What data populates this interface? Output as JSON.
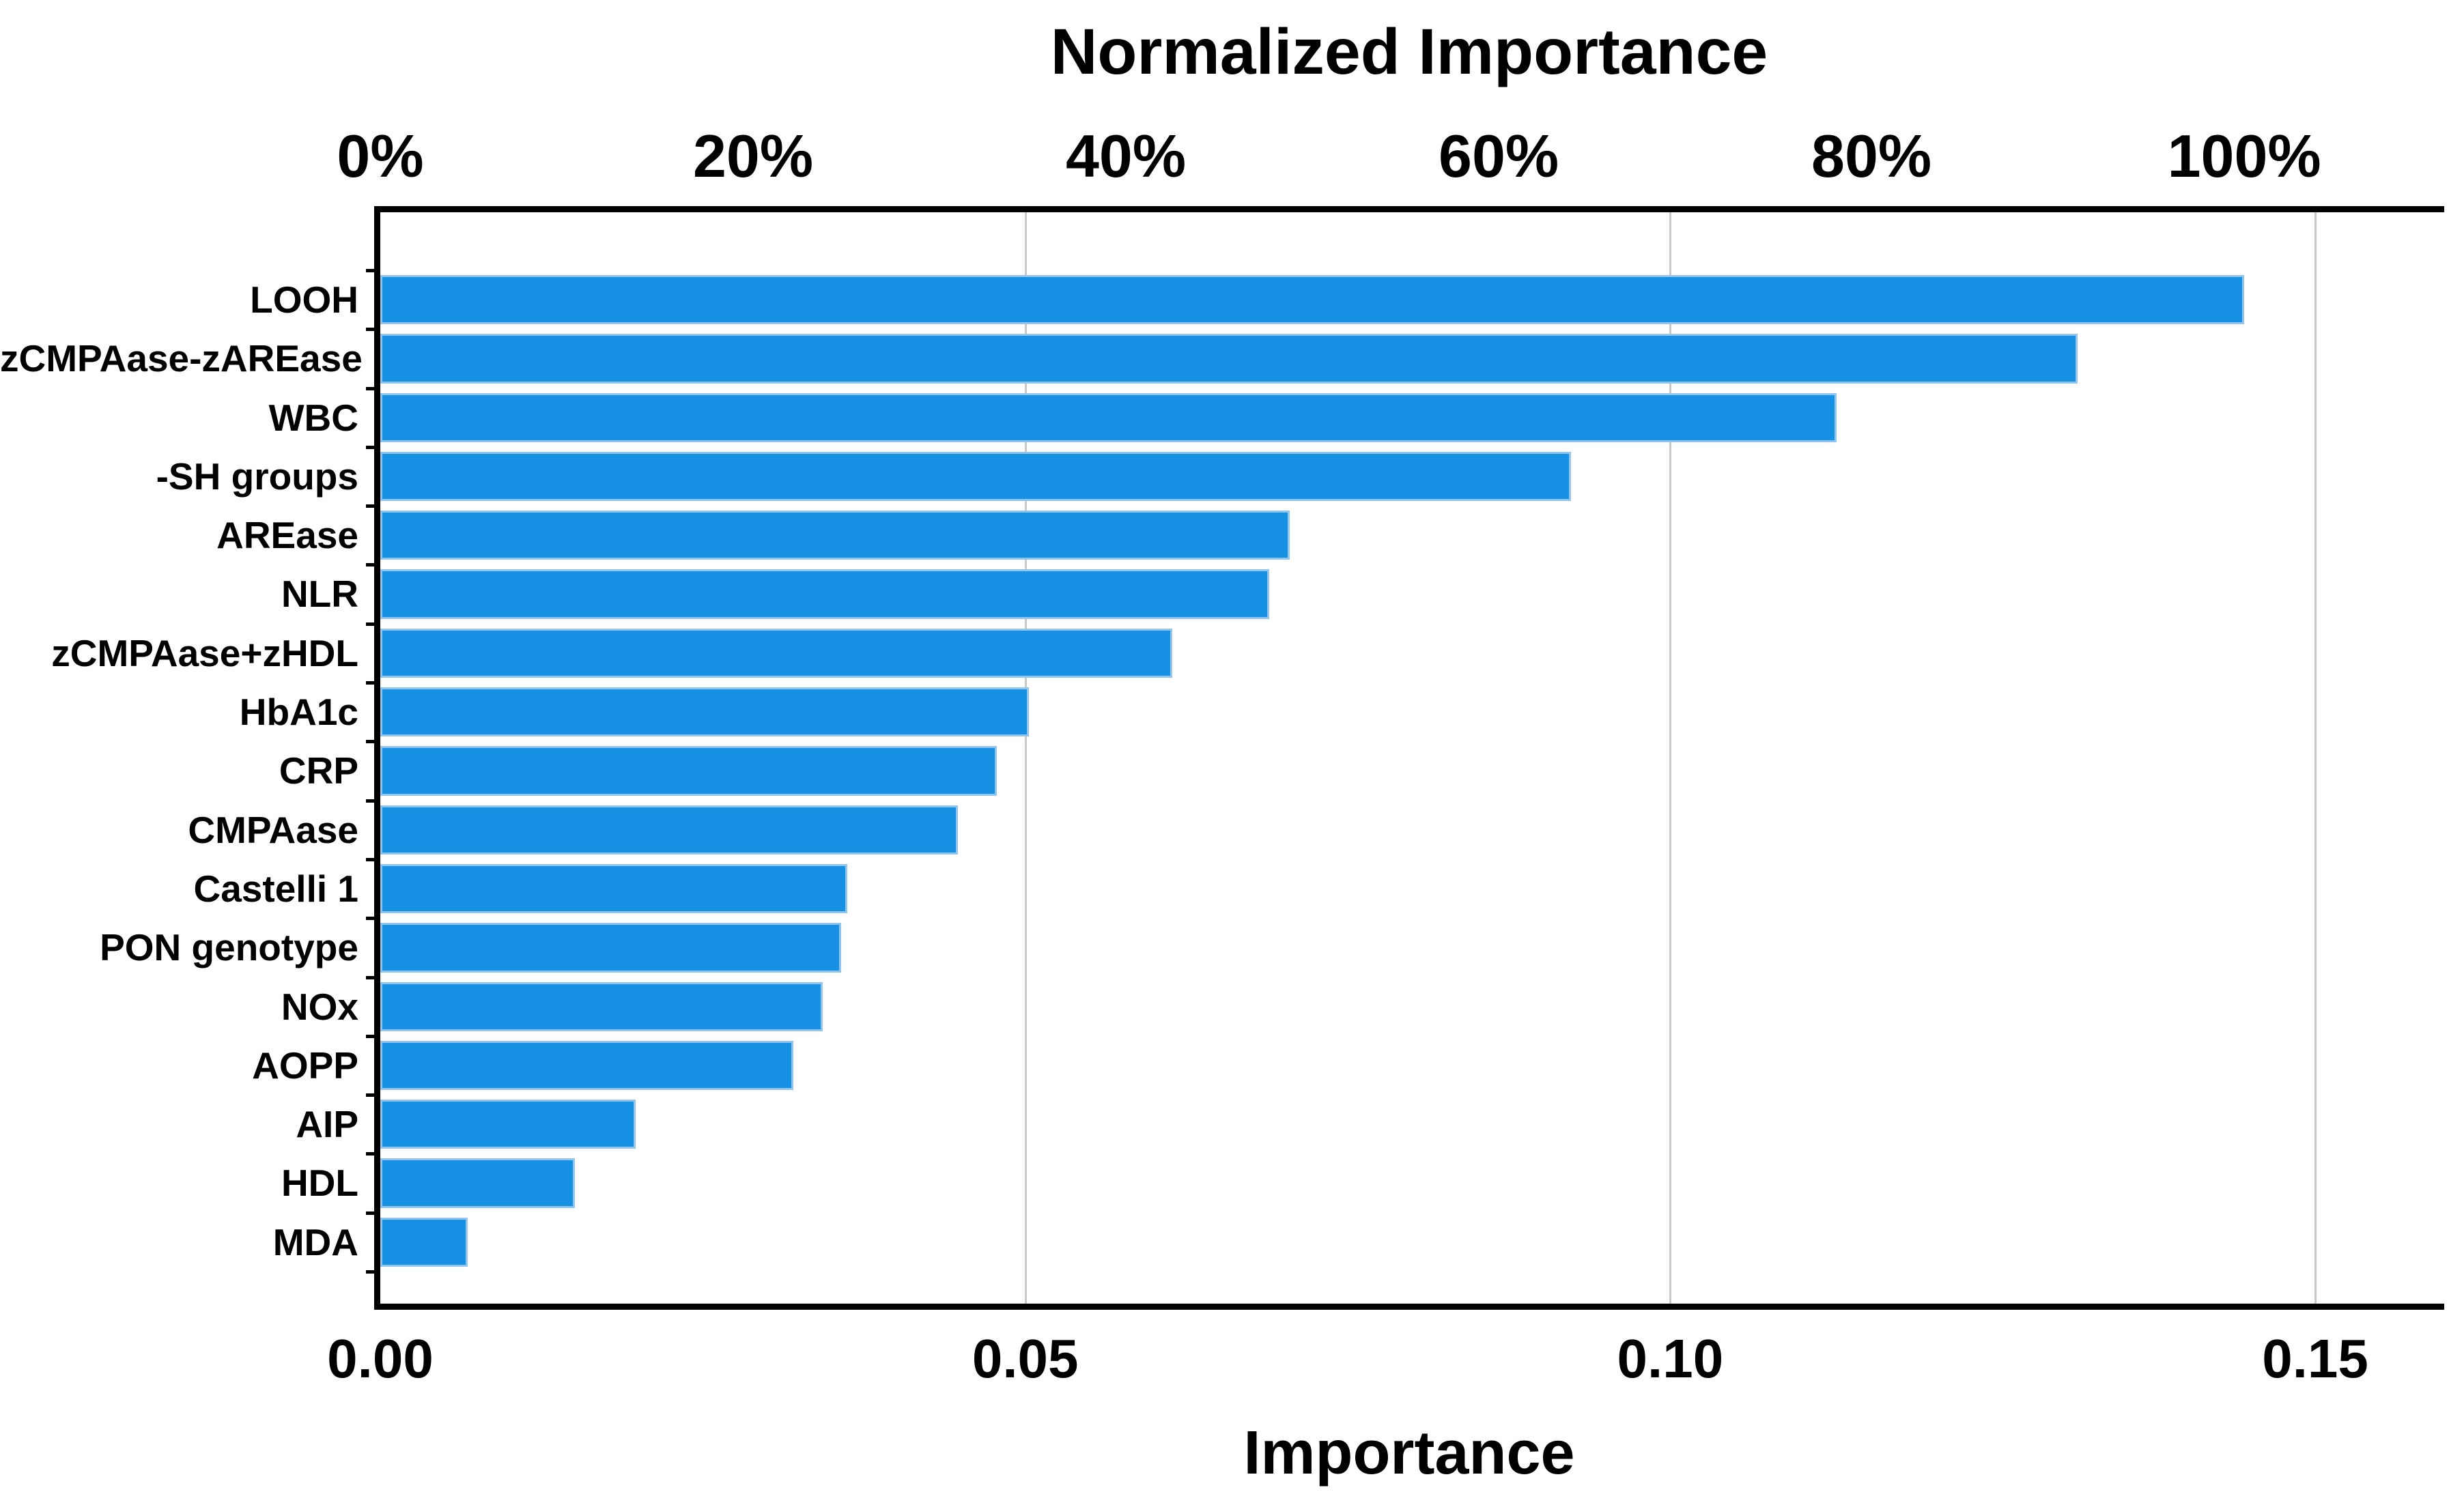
{
  "chart_data": {
    "type": "bar",
    "orientation": "horizontal",
    "title": "Normalized Importance",
    "xlabel": "Importance",
    "categories": [
      "LOOH",
      "zCMPAase-zAREase",
      "WBC",
      "-SH groups",
      "AREase",
      "NLR",
      "zCMPAase+zHDL",
      "HbA1c",
      "CRP",
      "CMPAase",
      "Castelli 1",
      "PON genotype",
      "NOx",
      "AOPP",
      "AIP",
      "HDL",
      "MDA"
    ],
    "values": [
      0.1445,
      0.1316,
      0.1129,
      0.0923,
      0.0705,
      0.0689,
      0.0614,
      0.0503,
      0.0478,
      0.0448,
      0.0362,
      0.0357,
      0.0343,
      0.032,
      0.0198,
      0.0151,
      0.0068
    ],
    "normalized_percent": [
      100,
      91,
      78,
      64,
      49,
      48,
      42,
      35,
      33,
      31,
      25,
      25,
      24,
      22,
      14,
      10,
      5
    ],
    "xlim": [
      0,
      0.16
    ],
    "max_importance": 0.1445,
    "bottom_axis_ticks": {
      "values": [
        0.0,
        0.05,
        0.1,
        0.15
      ],
      "labels": [
        "0.00",
        "0.05",
        "0.10",
        "0.15"
      ]
    },
    "top_axis_ticks": {
      "percents": [
        0,
        20,
        40,
        60,
        80,
        100
      ],
      "labels": [
        "0%",
        "20%",
        "40%",
        "60%",
        "80%",
        "100%"
      ]
    },
    "legend": "none",
    "grid": "vertical-gridlines-at-bottom-ticks",
    "colors": {
      "bar_fill": "#1590e2",
      "bar_border": "#8fc5ee",
      "gridline": "#c9c9c9",
      "frame": "#000000",
      "text": "#000000",
      "background": "#ffffff"
    }
  }
}
